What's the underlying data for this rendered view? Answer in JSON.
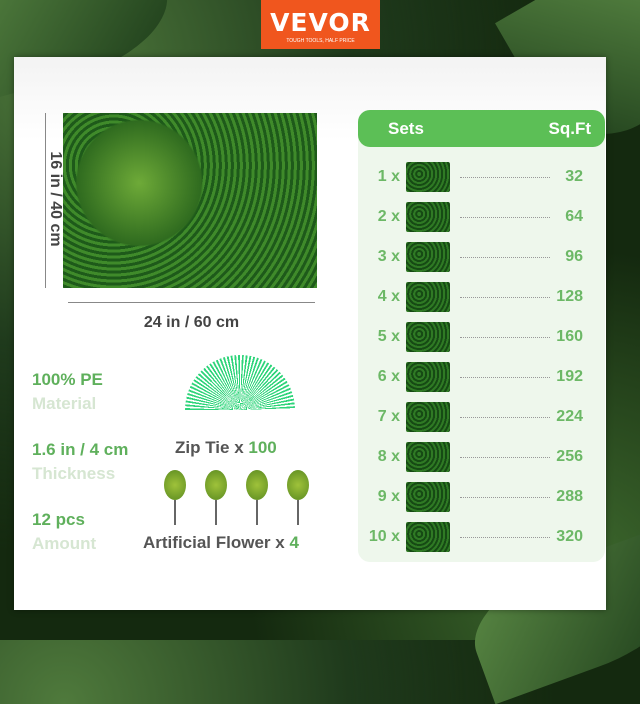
{
  "brand": {
    "name": "VEVOR",
    "tagline": "TOUGH TOOLS, HALF PRICE",
    "color": "#f0561e"
  },
  "dimensions": {
    "height": "16 in / 40 cm",
    "width": "24 in / 60 cm"
  },
  "specs": [
    {
      "value": "100% PE",
      "label": "Material"
    },
    {
      "value": "1.6 in / 4 cm",
      "label": "Thickness"
    },
    {
      "value": "12 pcs",
      "label": "Amount"
    }
  ],
  "accessories": {
    "zip_tie": {
      "label": "Zip Tie x ",
      "count": "100"
    },
    "flower": {
      "label": "Artificial Flower x ",
      "count": "4"
    }
  },
  "table": {
    "headers": {
      "sets": "Sets",
      "sqft": "Sq.Ft"
    },
    "rows": [
      {
        "sets": "1 x",
        "sqft": "32"
      },
      {
        "sets": "2 x",
        "sqft": "64"
      },
      {
        "sets": "3 x",
        "sqft": "96"
      },
      {
        "sets": "4 x",
        "sqft": "128"
      },
      {
        "sets": "5 x",
        "sqft": "160"
      },
      {
        "sets": "6 x",
        "sqft": "192"
      },
      {
        "sets": "7 x",
        "sqft": "224"
      },
      {
        "sets": "8 x",
        "sqft": "256"
      },
      {
        "sets": "9 x",
        "sqft": "288"
      },
      {
        "sets": "10 x",
        "sqft": "320"
      }
    ]
  },
  "colors": {
    "accent_green": "#5cbf56",
    "background": "#16301a"
  }
}
